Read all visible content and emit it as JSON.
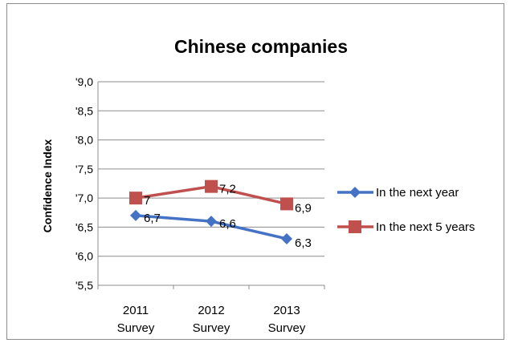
{
  "chart_data": {
    "type": "line",
    "title": "Chinese companies",
    "xlabel": "",
    "ylabel": "Confidence Index",
    "categories": [
      "2011 Survey",
      "2012 Survey",
      "2013 Survey"
    ],
    "category_lines": [
      [
        "2011",
        "Survey"
      ],
      [
        "2012",
        "Survey"
      ],
      [
        "2013",
        "Survey"
      ]
    ],
    "y_ticks": [
      "'5,5",
      "'6,0",
      "'6,5",
      "'7,0",
      "'7,5",
      "'8,0",
      "'8,5",
      "'9,0"
    ],
    "y_tick_values": [
      5.5,
      6.0,
      6.5,
      7.0,
      7.5,
      8.0,
      8.5,
      9.0
    ],
    "ylim": [
      5.5,
      9.0
    ],
    "grid": true,
    "legend_position": "right",
    "series": [
      {
        "name": "In the next year",
        "values": [
          6.7,
          6.6,
          6.3
        ],
        "data_labels": [
          "6,7",
          "6,6",
          "6,3"
        ],
        "color": "#4472C4",
        "marker": "diamond"
      },
      {
        "name": "In the next 5 years",
        "values": [
          7.0,
          7.2,
          6.9
        ],
        "data_labels": [
          "7",
          "7,2",
          "6,9"
        ],
        "color": "#C0504D",
        "marker": "square"
      }
    ]
  }
}
